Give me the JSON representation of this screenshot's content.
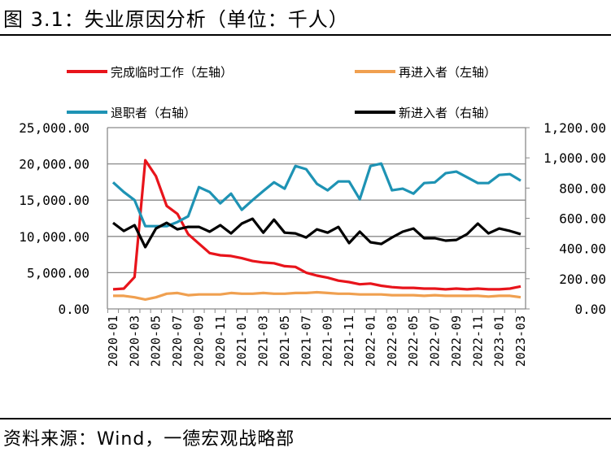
{
  "title": "图 3.1：失业原因分析（单位：千人）",
  "source": "资料来源：Wind，一德宏观战略部",
  "chart_data": {
    "type": "line",
    "x": [
      "2020-01",
      "2020-02",
      "2020-03",
      "2020-04",
      "2020-05",
      "2020-06",
      "2020-07",
      "2020-08",
      "2020-09",
      "2020-10",
      "2020-11",
      "2020-12",
      "2021-01",
      "2021-02",
      "2021-03",
      "2021-04",
      "2021-05",
      "2021-06",
      "2021-07",
      "2021-08",
      "2021-09",
      "2021-10",
      "2021-11",
      "2021-12",
      "2022-01",
      "2022-02",
      "2022-03",
      "2022-04",
      "2022-05",
      "2022-06",
      "2022-07",
      "2022-08",
      "2022-09",
      "2022-10",
      "2022-11",
      "2022-12",
      "2023-01",
      "2023-02",
      "2023-03"
    ],
    "x_tick_labels": [
      "2020-01",
      "2020-03",
      "2020-05",
      "2020-07",
      "2020-09",
      "2020-11",
      "2021-01",
      "2021-03",
      "2021-05",
      "2021-07",
      "2021-09",
      "2021-11",
      "2022-01",
      "2022-03",
      "2022-05",
      "2022-07",
      "2022-09",
      "2022-11",
      "2023-01",
      "2023-03"
    ],
    "y_left": {
      "lim": [
        0,
        25000
      ],
      "ticks": [
        "0.00",
        "5,000.00",
        "10,000.00",
        "15,000.00",
        "20,000.00",
        "25,000.00"
      ]
    },
    "y_right": {
      "lim": [
        0,
        1200
      ],
      "ticks": [
        "0.00",
        "200.00",
        "400.00",
        "600.00",
        "800.00",
        "1,000.00",
        "1,200.00"
      ]
    },
    "grid": "horizontal",
    "legend_placement": "top",
    "series": [
      {
        "name": "完成临时工作（左轴）",
        "axis": "left",
        "color": "#e8141b",
        "values": [
          2700,
          2800,
          4400,
          20500,
          18300,
          14200,
          13100,
          10300,
          9000,
          7700,
          7400,
          7300,
          7000,
          6600,
          6400,
          6300,
          5900,
          5800,
          5000,
          4600,
          4300,
          3900,
          3700,
          3400,
          3500,
          3200,
          3000,
          2900,
          2900,
          2800,
          2800,
          2700,
          2800,
          2700,
          2800,
          2700,
          2700,
          2800,
          3100
        ]
      },
      {
        "name": "再进入者（左轴）",
        "axis": "left",
        "color": "#f0a050",
        "values": [
          1800,
          1800,
          1600,
          1300,
          1600,
          2100,
          2200,
          1900,
          2000,
          2000,
          2000,
          2200,
          2100,
          2100,
          2200,
          2100,
          2100,
          2200,
          2200,
          2300,
          2200,
          2100,
          2100,
          2000,
          2000,
          2000,
          1900,
          1900,
          1900,
          1800,
          1900,
          1800,
          1800,
          1800,
          1800,
          1700,
          1800,
          1800,
          1600
        ]
      },
      {
        "name": "退职者（右轴）",
        "axis": "right",
        "color": "#1e93b4",
        "values": [
          838,
          774,
          720,
          548,
          548,
          548,
          575,
          613,
          806,
          774,
          699,
          763,
          656,
          720,
          780,
          838,
          796,
          946,
          925,
          828,
          785,
          844,
          844,
          726,
          946,
          962,
          785,
          796,
          763,
          833,
          838,
          898,
          909,
          871,
          833,
          833,
          887,
          892,
          849
        ]
      },
      {
        "name": "新进入者（右轴）",
        "axis": "right",
        "color": "#000000",
        "values": [
          570,
          516,
          554,
          409,
          532,
          570,
          527,
          543,
          543,
          511,
          554,
          500,
          565,
          597,
          505,
          591,
          505,
          500,
          473,
          527,
          505,
          543,
          436,
          511,
          441,
          430,
          473,
          511,
          532,
          468,
          468,
          452,
          457,
          495,
          565,
          500,
          532,
          516,
          495
        ]
      }
    ]
  }
}
